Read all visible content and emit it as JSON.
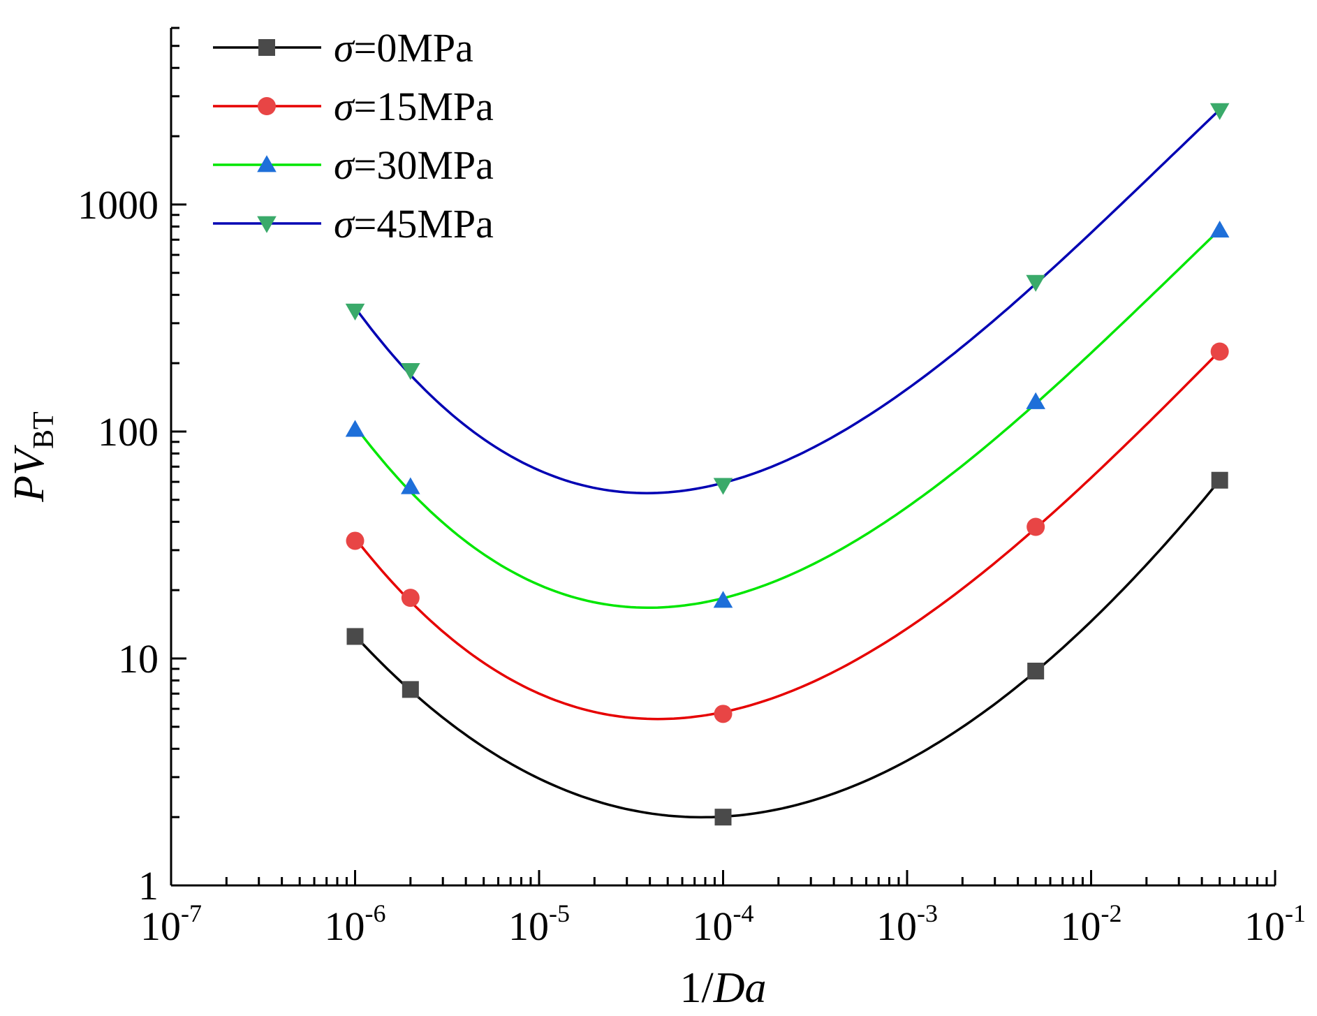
{
  "chart_data": {
    "type": "line",
    "x_scale": "log",
    "y_scale": "log",
    "xlim": [
      1e-07,
      0.1
    ],
    "ylim": [
      1,
      6000
    ],
    "x_ticks": [
      {
        "base": "10",
        "exp": "-7",
        "value": 1e-07
      },
      {
        "base": "10",
        "exp": "-6",
        "value": 1e-06
      },
      {
        "base": "10",
        "exp": "-5",
        "value": 1e-05
      },
      {
        "base": "10",
        "exp": "-4",
        "value": 0.0001
      },
      {
        "base": "10",
        "exp": "-3",
        "value": 0.001
      },
      {
        "base": "10",
        "exp": "-2",
        "value": 0.01
      },
      {
        "base": "10",
        "exp": "-1",
        "value": 0.1
      }
    ],
    "y_ticks": [
      {
        "label": "1",
        "value": 1
      },
      {
        "label": "10",
        "value": 10
      },
      {
        "label": "100",
        "value": 100
      },
      {
        "label": "1000",
        "value": 1000
      }
    ],
    "xlabel": {
      "prefix": "1/",
      "italic": "Da"
    },
    "ylabel": {
      "italic": "PV",
      "sub": "BT"
    },
    "legend": {
      "position": "top-left"
    },
    "grid": false,
    "x": [
      1e-06,
      2e-06,
      0.0001,
      0.005,
      0.05
    ],
    "series": [
      {
        "name_sym": "σ",
        "name_rest": "=0MPa",
        "line_color": "#000000",
        "marker": "square",
        "marker_color": "#4a4a4a",
        "values": [
          12.5,
          7.3,
          2.0,
          8.8,
          61
        ]
      },
      {
        "name_sym": "σ",
        "name_rest": "=15MPa",
        "line_color": "#e60000",
        "marker": "circle",
        "marker_color": "#e84545",
        "values": [
          33,
          18.5,
          5.7,
          38,
          225
        ]
      },
      {
        "name_sym": "σ",
        "name_rest": "=30MPa",
        "line_color": "#00e600",
        "marker": "triangle-up",
        "marker_color": "#1e6fd9",
        "values": [
          102,
          57,
          18,
          135,
          770
        ]
      },
      {
        "name_sym": "σ",
        "name_rest": "=45MPa",
        "line_color": "#0000b3",
        "marker": "triangle-down",
        "marker_color": "#3aaa6a",
        "values": [
          340,
          186,
          58,
          455,
          2600
        ]
      }
    ]
  }
}
